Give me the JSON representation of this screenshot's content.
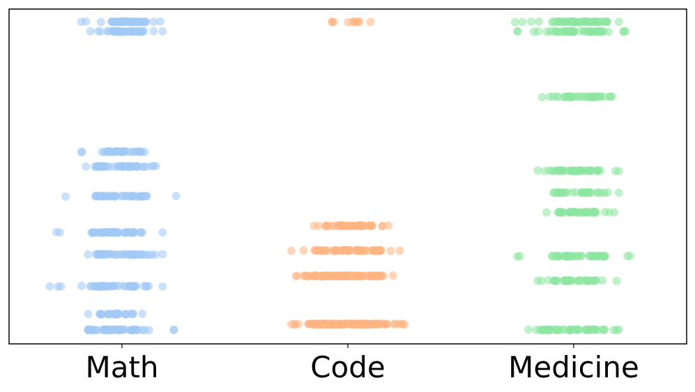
{
  "chart_data": {
    "type": "scatter",
    "style": "strip plot (jittered categorical scatter), no y-axis ticks",
    "grid": false,
    "y_axis_visible": false,
    "ylim": [
      0,
      1
    ],
    "categories": [
      "Math",
      "Code",
      "Medicine"
    ],
    "colors": {
      "Math": "#a1c9f4",
      "Code": "#ffb482",
      "Medicine": "#8de5a1"
    },
    "groups": [
      {
        "category": "Math",
        "bands": [
          {
            "y": 0.962,
            "x_min": -0.18,
            "x_max": 0.17,
            "x_core": [
              -0.05,
              0.1
            ],
            "count": 40
          },
          {
            "y": 0.933,
            "x_min": -0.14,
            "x_max": 0.18,
            "x_core": [
              -0.05,
              0.1
            ],
            "count": 40
          },
          {
            "y": 0.574,
            "x_min": -0.18,
            "x_max": 0.1,
            "x_core": [
              -0.07,
              0.08
            ],
            "count": 30
          },
          {
            "y": 0.53,
            "x_min": -0.16,
            "x_max": 0.15,
            "x_core": [
              -0.12,
              0.1
            ],
            "count": 40
          },
          {
            "y": 0.441,
            "x_min": -0.25,
            "x_max": 0.24,
            "x_core": [
              -0.12,
              0.1
            ],
            "count": 40
          },
          {
            "y": 0.333,
            "x_min": -0.29,
            "x_max": 0.18,
            "x_core": [
              -0.14,
              0.1
            ],
            "count": 45
          },
          {
            "y": 0.267,
            "x_min": -0.15,
            "x_max": 0.18,
            "x_core": [
              -0.12,
              0.1
            ],
            "count": 40
          },
          {
            "y": 0.172,
            "x_min": -0.32,
            "x_max": 0.18,
            "x_core": [
              -0.15,
              0.12
            ],
            "count": 45
          },
          {
            "y": 0.089,
            "x_min": -0.15,
            "x_max": 0.09,
            "x_core": [
              -0.1,
              0.05
            ],
            "count": 25
          },
          {
            "y": 0.042,
            "x_min": -0.15,
            "x_max": 0.23,
            "x_core": [
              -0.15,
              0.12
            ],
            "count": 50
          }
        ]
      },
      {
        "category": "Code",
        "bands": [
          {
            "y": 0.962,
            "x_min": -0.07,
            "x_max": 0.1,
            "x_core": [
              -0.07,
              0.08
            ],
            "count": 8
          },
          {
            "y": 0.353,
            "x_min": -0.15,
            "x_max": 0.18,
            "x_core": [
              -0.1,
              0.12
            ],
            "count": 45
          },
          {
            "y": 0.279,
            "x_min": -0.25,
            "x_max": 0.23,
            "x_core": [
              -0.15,
              0.15
            ],
            "count": 60
          },
          {
            "y": 0.203,
            "x_min": -0.23,
            "x_max": 0.2,
            "x_core": [
              -0.15,
              0.15
            ],
            "count": 120
          },
          {
            "y": 0.059,
            "x_min": -0.25,
            "x_max": 0.25,
            "x_core": [
              -0.17,
              0.17
            ],
            "count": 150
          }
        ]
      },
      {
        "category": "Medicine",
        "bands": [
          {
            "y": 0.962,
            "x_min": -0.26,
            "x_max": 0.2,
            "x_core": [
              -0.09,
              0.15
            ],
            "count": 50
          },
          {
            "y": 0.933,
            "x_min": -0.25,
            "x_max": 0.23,
            "x_core": [
              -0.1,
              0.15
            ],
            "count": 50
          },
          {
            "y": 0.738,
            "x_min": -0.14,
            "x_max": 0.17,
            "x_core": [
              -0.1,
              0.12
            ],
            "count": 35
          },
          {
            "y": 0.517,
            "x_min": -0.16,
            "x_max": 0.2,
            "x_core": [
              -0.12,
              0.12
            ],
            "count": 40
          },
          {
            "y": 0.452,
            "x_min": -0.09,
            "x_max": 0.2,
            "x_core": [
              -0.07,
              0.12
            ],
            "count": 30
          },
          {
            "y": 0.393,
            "x_min": -0.12,
            "x_max": 0.18,
            "x_core": [
              -0.07,
              0.1
            ],
            "count": 35
          },
          {
            "y": 0.262,
            "x_min": -0.25,
            "x_max": 0.25,
            "x_core": [
              -0.1,
              0.15
            ],
            "count": 45
          },
          {
            "y": 0.189,
            "x_min": -0.16,
            "x_max": 0.19,
            "x_core": [
              -0.1,
              0.1
            ],
            "count": 35
          },
          {
            "y": 0.042,
            "x_min": -0.2,
            "x_max": 0.2,
            "x_core": [
              -0.15,
              0.15
            ],
            "count": 45
          }
        ]
      }
    ]
  }
}
